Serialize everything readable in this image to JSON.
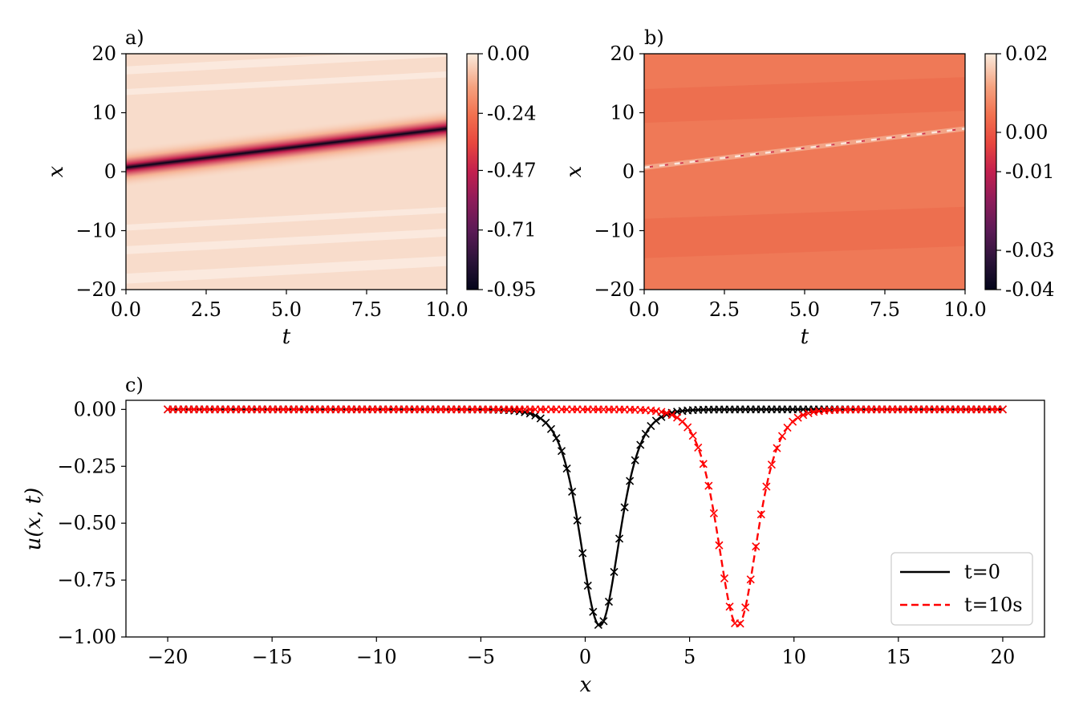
{
  "chart_data": [
    {
      "id": "a",
      "type": "heatmap",
      "panel_label": "a)",
      "xlabel": "t",
      "ylabel": "x",
      "xlim": [
        0,
        10
      ],
      "ylim": [
        -20,
        20
      ],
      "xticks": [
        0,
        2.5,
        5,
        7.5,
        10
      ],
      "xtick_labels": [
        "0.0",
        "2.5",
        "5.0",
        "7.5",
        "10.0"
      ],
      "yticks": [
        -20,
        -10,
        0,
        10,
        20
      ],
      "ytick_labels": [
        "−20",
        "−10",
        "0",
        "10",
        "20"
      ],
      "soliton": {
        "x0": 0.7,
        "x_end": 7.3,
        "amplitude": -0.95
      },
      "colorbar": {
        "min": -0.95,
        "max": 0.0,
        "ticks": [
          0.0,
          -0.24,
          -0.47,
          -0.71,
          -0.95
        ],
        "tick_labels": [
          "0.00",
          "-0.24",
          "-0.47",
          "-0.71",
          "-0.95"
        ]
      }
    },
    {
      "id": "b",
      "type": "heatmap",
      "panel_label": "b)",
      "xlabel": "t",
      "ylabel": "x",
      "xlim": [
        0,
        10
      ],
      "ylim": [
        -20,
        20
      ],
      "xticks": [
        0,
        2.5,
        5,
        7.5,
        10
      ],
      "xtick_labels": [
        "0.0",
        "2.5",
        "5.0",
        "7.5",
        "10.0"
      ],
      "yticks": [
        -20,
        -10,
        0,
        10,
        20
      ],
      "ytick_labels": [
        "−20",
        "−10",
        "0",
        "10",
        "20"
      ],
      "colorbar": {
        "min": -0.04,
        "max": 0.02,
        "ticks": [
          0.02,
          0.0,
          -0.01,
          -0.03,
          -0.04
        ],
        "tick_labels": [
          "0.02",
          "0.00",
          "-0.01",
          "-0.03",
          "-0.04"
        ]
      }
    },
    {
      "id": "c",
      "type": "line",
      "panel_label": "c)",
      "xlabel": "x",
      "ylabel": "u(x, t)",
      "xlim": [
        -22,
        22
      ],
      "ylim": [
        -1.0,
        0.04
      ],
      "xticks": [
        -20,
        -15,
        -10,
        -5,
        0,
        5,
        10,
        15,
        20
      ],
      "xtick_labels": [
        "−20",
        "−15",
        "−10",
        "−5",
        "0",
        "5",
        "10",
        "15",
        "20"
      ],
      "yticks": [
        0.0,
        -0.25,
        -0.5,
        -0.75,
        -1.0
      ],
      "ytick_labels": [
        "0.00",
        "−0.25",
        "−0.50",
        "−0.75",
        "−1.00"
      ],
      "series": [
        {
          "name": "t=0",
          "center": 0.7,
          "amplitude": -0.95,
          "color": "#000000",
          "style": "solid",
          "marker_color": "#000000"
        },
        {
          "name": "t=10s",
          "center": 7.3,
          "amplitude": -0.95,
          "color": "#ff0000",
          "style": "dashed",
          "marker_color": "#ff0000"
        }
      ],
      "legend_position": "lower-right",
      "n_markers": 160
    }
  ]
}
